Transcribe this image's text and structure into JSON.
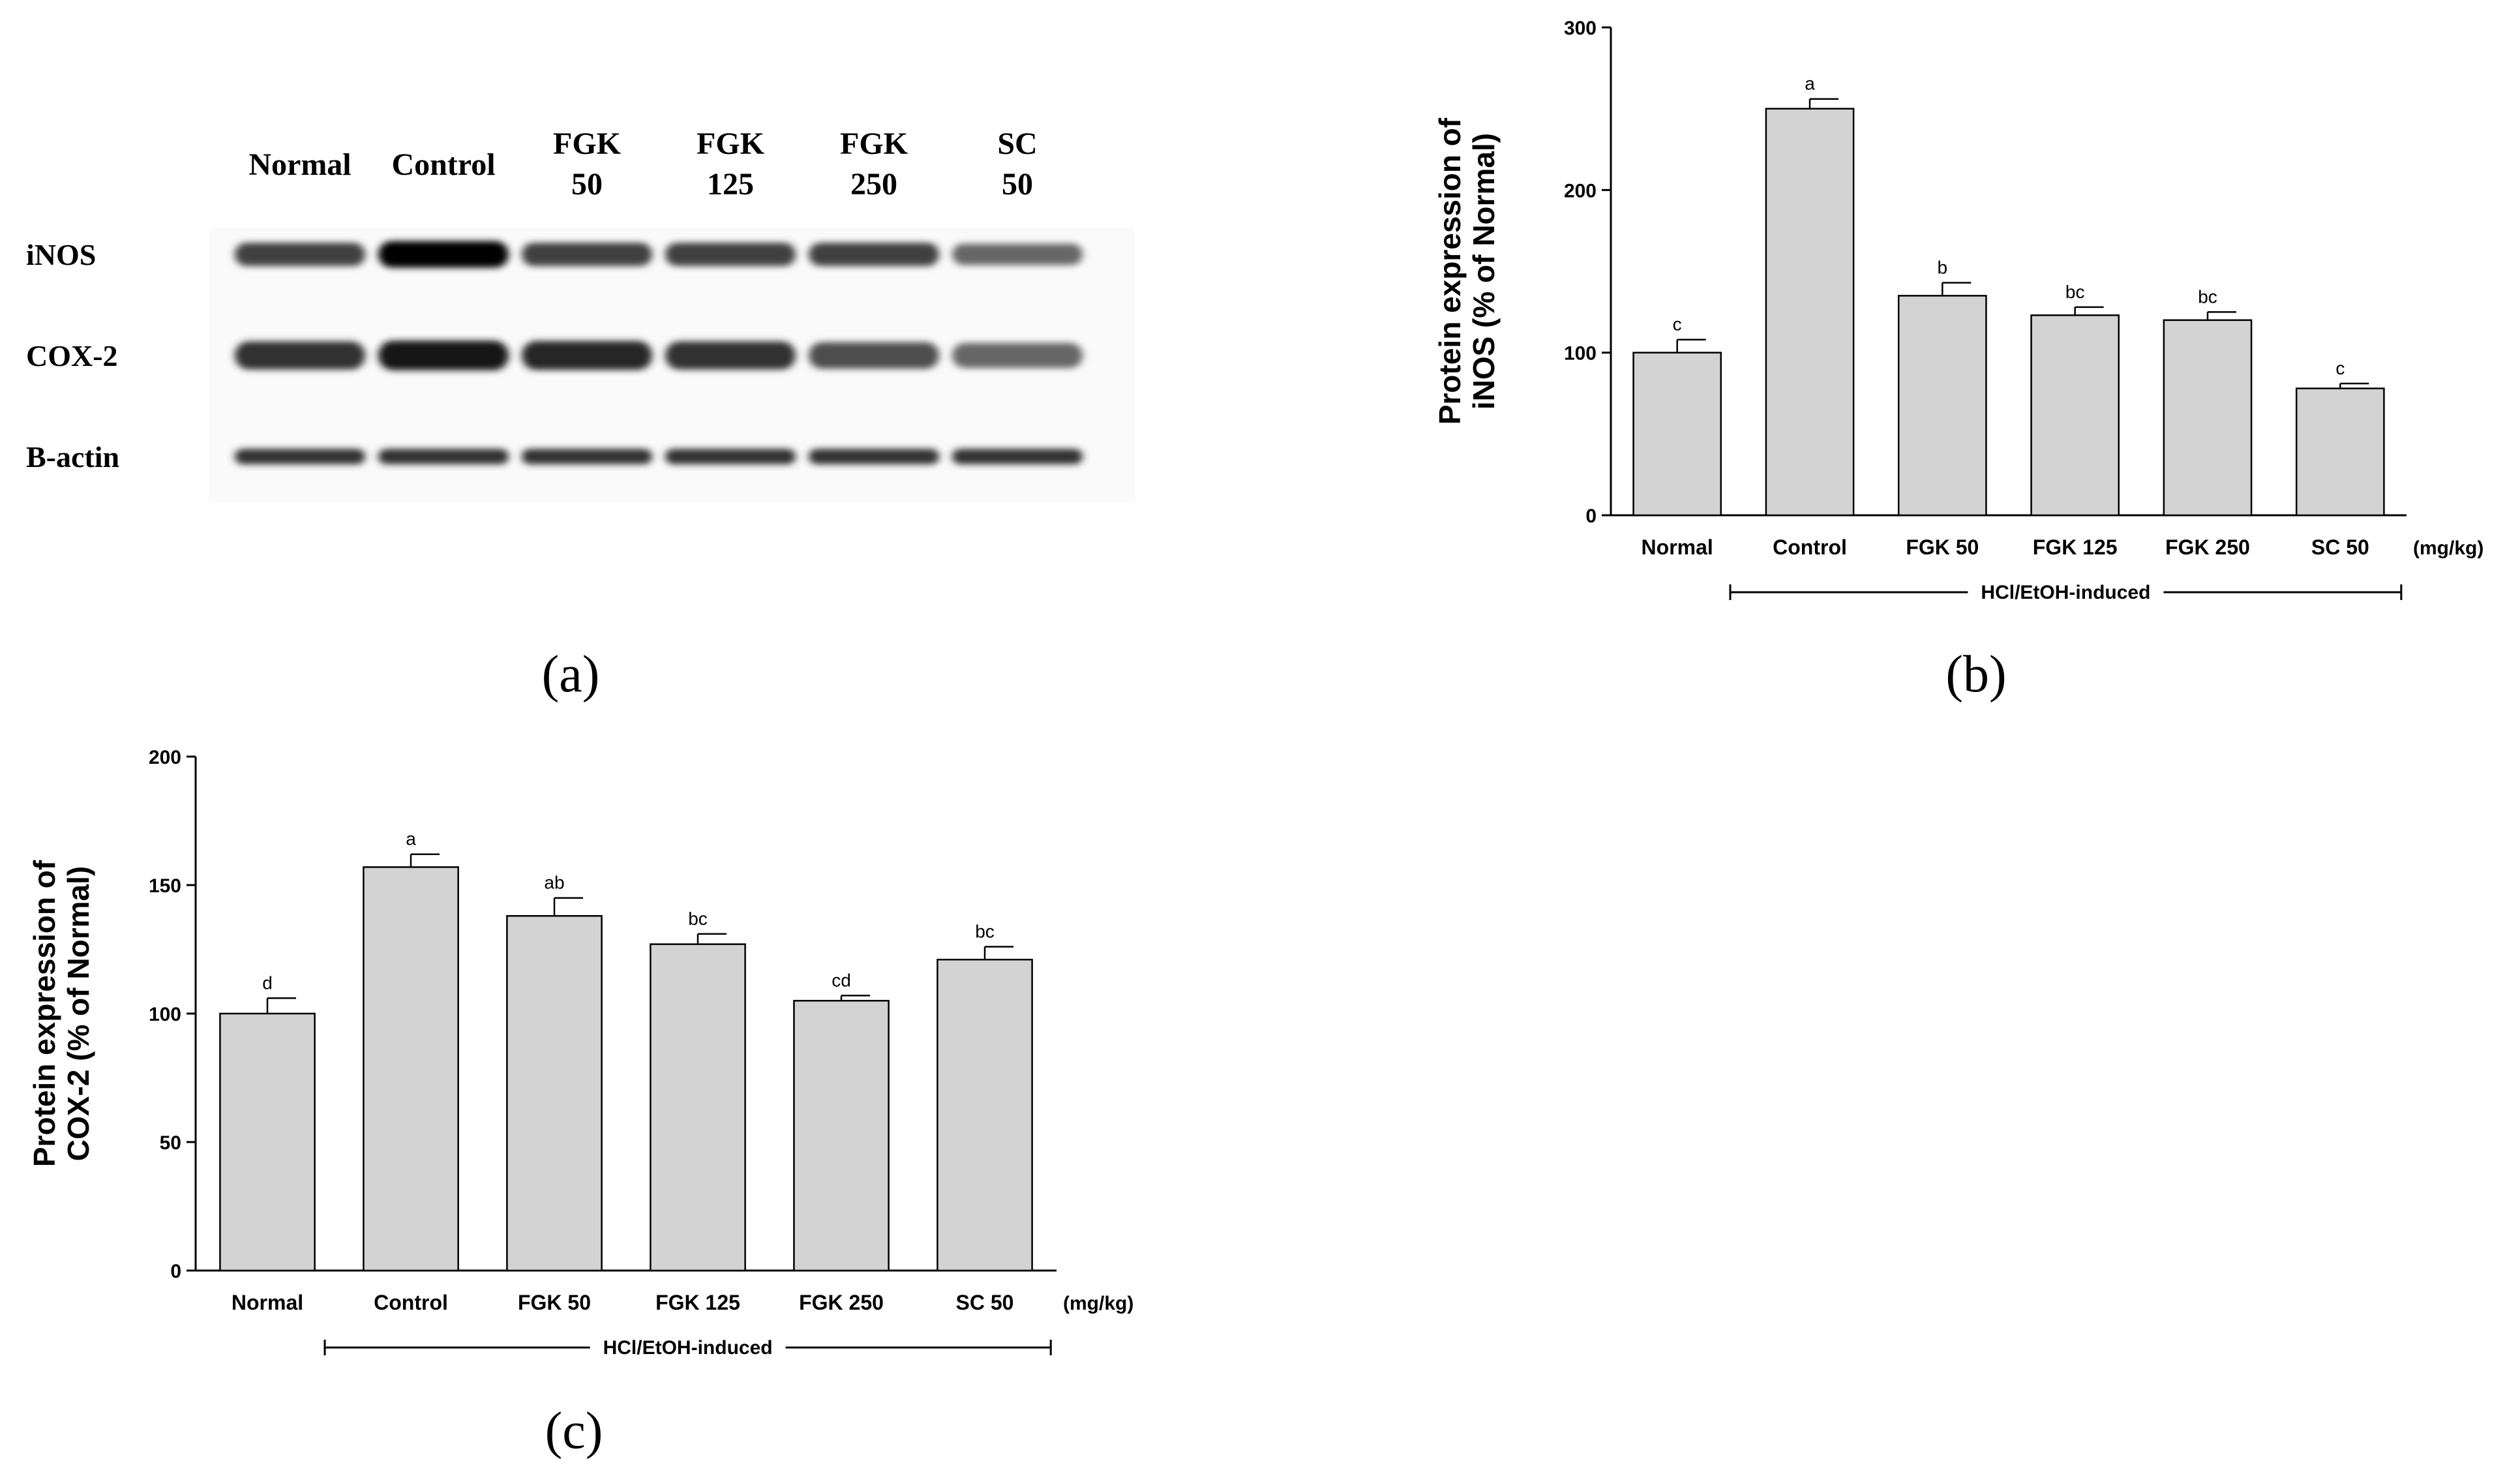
{
  "panel_labels": {
    "a": "(a)",
    "b": "(b)",
    "c": "(c)"
  },
  "blot": {
    "lanes": [
      {
        "line1": "Normal",
        "line2": ""
      },
      {
        "line1": "Control",
        "line2": ""
      },
      {
        "line1": "FGK",
        "line2": "50"
      },
      {
        "line1": "FGK",
        "line2": "125"
      },
      {
        "line1": "FGK",
        "line2": "250"
      },
      {
        "line1": "SC",
        "line2": "50"
      }
    ],
    "rows": [
      {
        "label": "iNOS",
        "intensities": [
          0.75,
          1.0,
          0.75,
          0.75,
          0.75,
          0.6
        ]
      },
      {
        "label": "COX-2",
        "intensities": [
          0.8,
          0.9,
          0.85,
          0.8,
          0.7,
          0.6
        ]
      },
      {
        "label": "B-actin",
        "intensities": [
          0.8,
          0.8,
          0.8,
          0.8,
          0.8,
          0.8
        ]
      }
    ]
  },
  "chart_data": [
    {
      "type": "bar",
      "id": "b",
      "categories": [
        "Normal",
        "Control",
        "FGK 50",
        "FGK 125",
        "FGK 250",
        "SC 50"
      ],
      "values": [
        100,
        250,
        135,
        123,
        120,
        78
      ],
      "errors": [
        8,
        6,
        8,
        5,
        5,
        3
      ],
      "significance": [
        "c",
        "a",
        "b",
        "bc",
        "bc",
        "c"
      ],
      "ylabel_line1": "Protein expression of",
      "ylabel_line2": "iNOS (% of Normal)",
      "ylim": [
        0,
        300
      ],
      "yticks": [
        0,
        100,
        200,
        300
      ],
      "unit_label": "(mg/kg)",
      "group_label": "HCl/EtOH-induced",
      "bar_color": "#d3d3d3"
    },
    {
      "type": "bar",
      "id": "c",
      "categories": [
        "Normal",
        "Control",
        "FGK 50",
        "FGK 125",
        "FGK 250",
        "SC 50"
      ],
      "values": [
        100,
        157,
        138,
        127,
        105,
        121
      ],
      "errors": [
        6,
        5,
        7,
        4,
        2,
        5
      ],
      "significance": [
        "d",
        "a",
        "ab",
        "bc",
        "cd",
        "bc"
      ],
      "ylabel_line1": "Protein expression of",
      "ylabel_line2": "COX-2 (% of Normal)",
      "ylim": [
        0,
        200
      ],
      "yticks": [
        0,
        50,
        100,
        150,
        200
      ],
      "unit_label": "(mg/kg)",
      "group_label": "HCl/EtOH-induced",
      "bar_color": "#d3d3d3"
    }
  ]
}
